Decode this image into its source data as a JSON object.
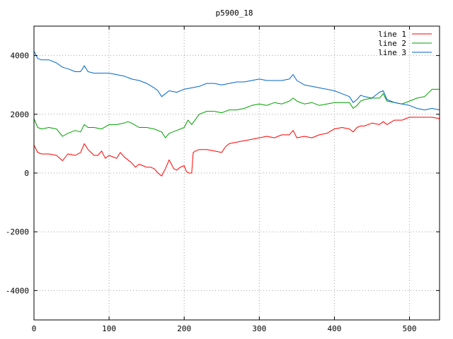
{
  "chart_data": {
    "type": "line",
    "title": "p5900_18",
    "xlabel": "",
    "ylabel": "",
    "xlim": [
      0,
      540
    ],
    "ylim": [
      -5000,
      5000
    ],
    "xticks": [
      0,
      100,
      200,
      300,
      400,
      500
    ],
    "yticks": [
      -4000,
      -2000,
      0,
      2000,
      4000
    ],
    "grid": true,
    "legend_position": "top-right",
    "series": [
      {
        "name": "line 1",
        "color": "#ff0000",
        "x": [
          0,
          5,
          10,
          20,
          30,
          38,
          45,
          55,
          62,
          67,
          72,
          80,
          85,
          90,
          95,
          100,
          105,
          110,
          115,
          120,
          125,
          130,
          135,
          140,
          145,
          150,
          155,
          160,
          165,
          170,
          172,
          175,
          180,
          183,
          186,
          190,
          195,
          200,
          203,
          206,
          210,
          212,
          215,
          220,
          230,
          240,
          250,
          255,
          260,
          270,
          280,
          290,
          300,
          310,
          320,
          330,
          340,
          345,
          350,
          360,
          370,
          380,
          390,
          400,
          410,
          420,
          425,
          430,
          435,
          440,
          450,
          460,
          465,
          470,
          480,
          490,
          500,
          510,
          520,
          530,
          540
        ],
        "y": [
          950,
          700,
          650,
          650,
          600,
          420,
          650,
          600,
          700,
          1000,
          800,
          600,
          600,
          750,
          500,
          600,
          550,
          500,
          700,
          550,
          450,
          350,
          200,
          300,
          250,
          200,
          200,
          150,
          0,
          -100,
          0,
          150,
          450,
          300,
          150,
          100,
          200,
          250,
          50,
          0,
          0,
          700,
          750,
          800,
          800,
          750,
          700,
          900,
          1000,
          1050,
          1100,
          1150,
          1200,
          1250,
          1200,
          1300,
          1300,
          1450,
          1200,
          1250,
          1200,
          1300,
          1350,
          1500,
          1550,
          1500,
          1400,
          1550,
          1600,
          1600,
          1700,
          1650,
          1750,
          1650,
          1800,
          1800,
          1900,
          1900,
          1900,
          1900,
          1850
        ]
      },
      {
        "name": "line 2",
        "color": "#00a000",
        "x": [
          0,
          5,
          10,
          20,
          30,
          38,
          45,
          55,
          62,
          67,
          72,
          80,
          90,
          100,
          110,
          120,
          125,
          130,
          140,
          150,
          160,
          170,
          175,
          180,
          190,
          200,
          205,
          210,
          220,
          230,
          240,
          250,
          260,
          270,
          280,
          290,
          300,
          310,
          320,
          330,
          340,
          345,
          350,
          360,
          370,
          380,
          390,
          400,
          410,
          420,
          425,
          430,
          435,
          440,
          450,
          460,
          465,
          470,
          480,
          490,
          500,
          510,
          520,
          530,
          540
        ],
        "y": [
          1850,
          1550,
          1500,
          1550,
          1500,
          1250,
          1350,
          1450,
          1400,
          1650,
          1550,
          1550,
          1500,
          1650,
          1650,
          1700,
          1750,
          1700,
          1550,
          1550,
          1500,
          1400,
          1200,
          1350,
          1450,
          1550,
          1800,
          1650,
          2000,
          2100,
          2100,
          2050,
          2150,
          2150,
          2200,
          2300,
          2350,
          2300,
          2400,
          2350,
          2450,
          2550,
          2450,
          2350,
          2400,
          2300,
          2350,
          2400,
          2400,
          2400,
          2200,
          2300,
          2450,
          2500,
          2550,
          2550,
          2700,
          2450,
          2400,
          2350,
          2450,
          2550,
          2600,
          2850,
          2850
        ]
      },
      {
        "name": "line 3",
        "color": "#0066cc",
        "x": [
          0,
          5,
          10,
          20,
          30,
          38,
          45,
          55,
          62,
          67,
          72,
          80,
          90,
          100,
          110,
          120,
          130,
          140,
          150,
          160,
          165,
          170,
          175,
          180,
          190,
          200,
          210,
          220,
          230,
          240,
          250,
          260,
          270,
          280,
          290,
          300,
          310,
          320,
          330,
          340,
          345,
          350,
          360,
          370,
          380,
          390,
          400,
          410,
          420,
          425,
          430,
          435,
          440,
          450,
          460,
          465,
          470,
          480,
          490,
          500,
          510,
          520,
          530,
          540
        ],
        "y": [
          4150,
          3900,
          3850,
          3850,
          3750,
          3600,
          3550,
          3450,
          3450,
          3650,
          3450,
          3400,
          3400,
          3400,
          3350,
          3300,
          3200,
          3150,
          3050,
          2900,
          2800,
          2600,
          2700,
          2800,
          2750,
          2850,
          2900,
          2950,
          3050,
          3050,
          3000,
          3050,
          3100,
          3100,
          3150,
          3200,
          3150,
          3150,
          3150,
          3200,
          3350,
          3150,
          3000,
          2950,
          2900,
          2850,
          2800,
          2700,
          2600,
          2400,
          2500,
          2650,
          2600,
          2550,
          2750,
          2800,
          2500,
          2400,
          2350,
          2300,
          2200,
          2150,
          2200,
          2150
        ]
      }
    ]
  }
}
